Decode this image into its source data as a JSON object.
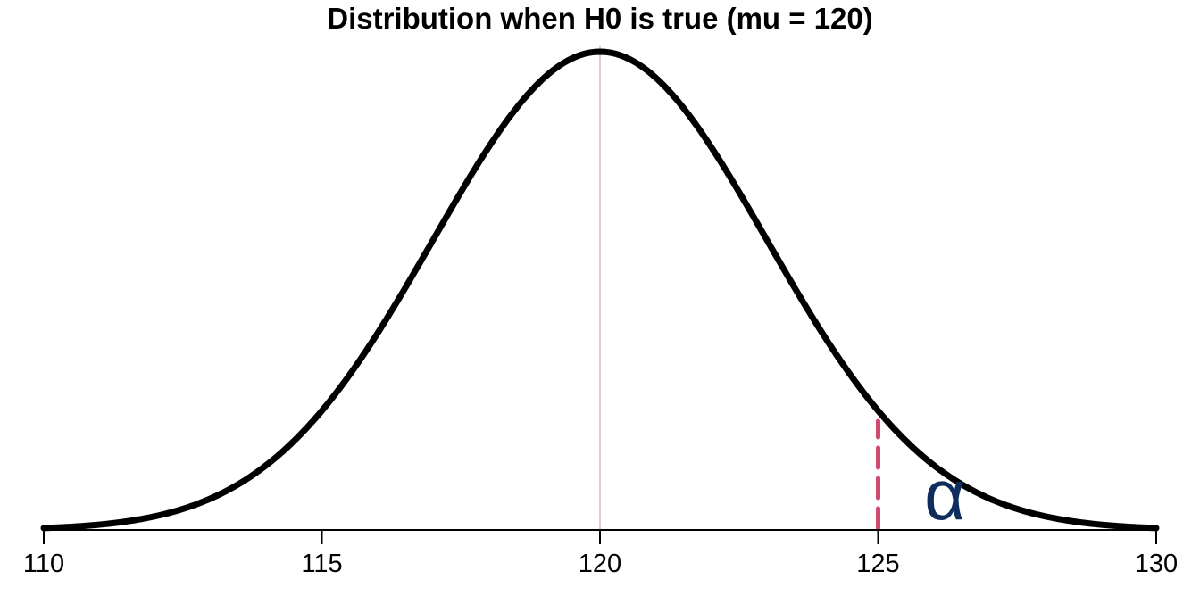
{
  "chart_data": {
    "type": "line",
    "title": "Distribution when H0 is true (mu = 120)",
    "xlabel": "",
    "ylabel": "",
    "xlim": [
      110,
      130
    ],
    "x_ticks": [
      110,
      115,
      120,
      125,
      130
    ],
    "x_tick_labels": [
      "110",
      "115",
      "120",
      "125",
      "130"
    ],
    "y_axis_shown": false,
    "grid": false,
    "series": [
      {
        "distribution": "normal",
        "mean": 120,
        "sd": 3,
        "color": "#000000"
      }
    ],
    "mean_line": {
      "x": 120,
      "color": "#e7c9d3"
    },
    "critical_value": {
      "x": 125,
      "color": "#d04a6f",
      "style": "dashed"
    },
    "annotations": [
      {
        "text": "α",
        "x": 126.2,
        "color": "#0f2d5c"
      }
    ]
  }
}
